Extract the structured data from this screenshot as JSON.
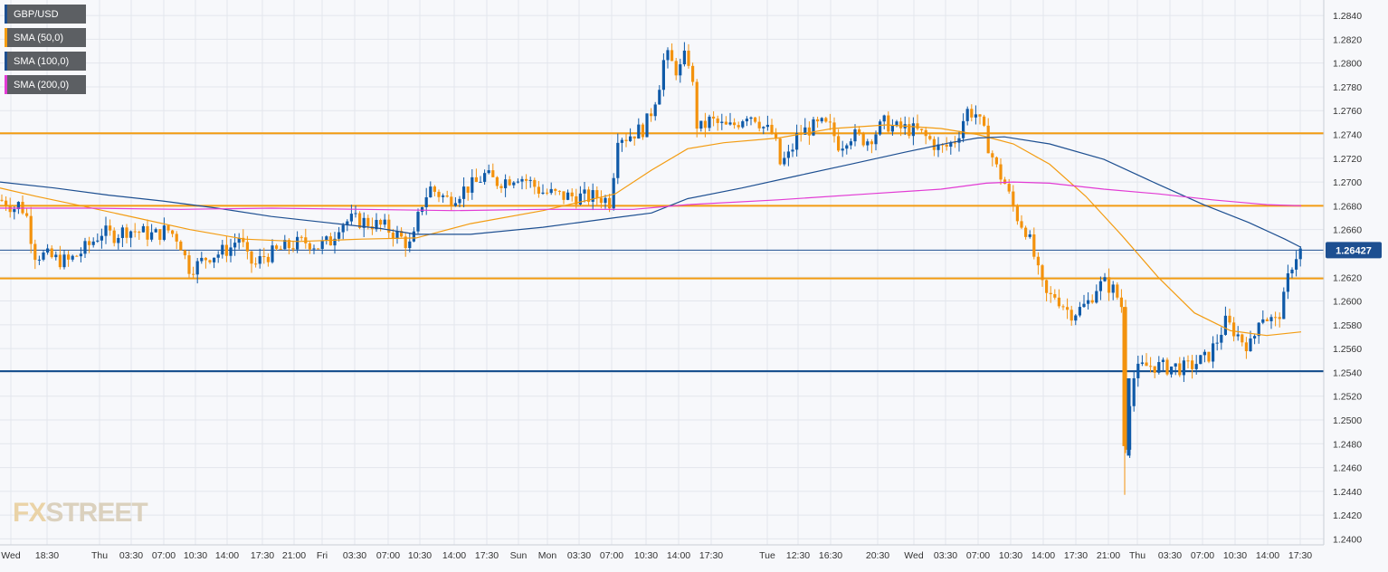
{
  "colors": {
    "bull": "#0f5aa8",
    "bear": "#f3920d",
    "sma50": "#f39c12",
    "sma100": "#1d4f91",
    "sma200": "#e23bd4",
    "level_orange": "#f39c12",
    "level_blue": "#0f4a8a",
    "grid": "#e3e6ec",
    "axis_text": "#333333",
    "price_badge": "#1d4f91"
  },
  "legend": [
    {
      "label": "GBP/USD",
      "color": "#1d4f91"
    },
    {
      "label": "SMA (50,0)",
      "color": "#f39c12"
    },
    {
      "label": "SMA (100,0)",
      "color": "#1d4f91"
    },
    {
      "label": "SMA (200,0)",
      "color": "#e23bd4"
    }
  ],
  "watermark": {
    "part1": "FX",
    "part2": "STREET"
  },
  "chart_data": {
    "type": "line",
    "title": "",
    "instrument": "GBP/USD",
    "ylim": [
      1.2395,
      1.2853
    ],
    "y_ticks": [
      "1.2400",
      "1.2420",
      "1.2440",
      "1.2460",
      "1.2480",
      "1.2500",
      "1.2520",
      "1.2540",
      "1.2560",
      "1.2580",
      "1.2600",
      "1.2620",
      "1.2640",
      "1.2660",
      "1.2680",
      "1.2700",
      "1.2720",
      "1.2740",
      "1.2760",
      "1.2780",
      "1.2800",
      "1.2820",
      "1.2840"
    ],
    "x_ticks": [
      "Wed",
      "18:30",
      "Thu",
      "03:30",
      "07:00",
      "10:30",
      "14:00",
      "17:30",
      "21:00",
      "Fri",
      "03:30",
      "07:00",
      "10:30",
      "14:00",
      "17:30",
      "Sun",
      "Mon",
      "03:30",
      "07:00",
      "10:30",
      "14:00",
      "17:30",
      "Tue",
      "12:30",
      "16:30",
      "20:30",
      "Wed",
      "03:30",
      "07:00",
      "10:30",
      "14:00",
      "17:30",
      "21:00",
      "Thu",
      "03:30",
      "07:00",
      "10:30",
      "14:00",
      "17:30"
    ],
    "current_price": {
      "value": 1.26427,
      "label": "1.26427"
    },
    "horizontal_levels": [
      {
        "value": 1.2741,
        "color": "#f39c12"
      },
      {
        "value": 1.268,
        "color": "#f39c12"
      },
      {
        "value": 1.2619,
        "color": "#f39c12"
      },
      {
        "value": 1.2541,
        "color": "#0f4a8a"
      }
    ],
    "price_path": [
      [
        0,
        1.2685
      ],
      [
        8,
        1.2683
      ],
      [
        15,
        1.2678
      ],
      [
        22,
        1.2682
      ],
      [
        30,
        1.267
      ],
      [
        38,
        1.264
      ],
      [
        50,
        1.2638
      ],
      [
        62,
        1.2635
      ],
      [
        75,
        1.2633
      ],
      [
        88,
        1.264
      ],
      [
        100,
        1.2648
      ],
      [
        112,
        1.2658
      ],
      [
        125,
        1.2655
      ],
      [
        140,
        1.266
      ],
      [
        155,
        1.2658
      ],
      [
        170,
        1.2655
      ],
      [
        185,
        1.266
      ],
      [
        198,
        1.2652
      ],
      [
        208,
        1.2628
      ],
      [
        218,
        1.263
      ],
      [
        230,
        1.2638
      ],
      [
        242,
        1.264
      ],
      [
        255,
        1.2645
      ],
      [
        265,
        1.2655
      ],
      [
        273,
        1.2635
      ],
      [
        282,
        1.263
      ],
      [
        292,
        1.2638
      ],
      [
        302,
        1.264
      ],
      [
        315,
        1.2645
      ],
      [
        328,
        1.2648
      ],
      [
        340,
        1.265
      ],
      [
        352,
        1.2646
      ],
      [
        365,
        1.265
      ],
      [
        375,
        1.2665
      ],
      [
        388,
        1.2668
      ],
      [
        400,
        1.2667
      ],
      [
        412,
        1.2665
      ],
      [
        425,
        1.2662
      ],
      [
        440,
        1.2655
      ],
      [
        455,
        1.2645
      ],
      [
        465,
        1.268
      ],
      [
        475,
        1.2695
      ],
      [
        485,
        1.269
      ],
      [
        495,
        1.2685
      ],
      [
        505,
        1.269
      ],
      [
        515,
        1.2695
      ],
      [
        525,
        1.2698
      ],
      [
        535,
        1.2706
      ],
      [
        548,
        1.27
      ],
      [
        560,
        1.2702
      ],
      [
        572,
        1.2706
      ],
      [
        585,
        1.27
      ],
      [
        598,
        1.2692
      ],
      [
        610,
        1.269
      ],
      [
        622,
        1.2688
      ],
      [
        635,
        1.2688
      ],
      [
        648,
        1.2687
      ],
      [
        662,
        1.2688
      ],
      [
        675,
        1.2683
      ],
      [
        682,
        1.274
      ],
      [
        692,
        1.2738
      ],
      [
        702,
        1.2742
      ],
      [
        712,
        1.2745
      ],
      [
        720,
        1.276
      ],
      [
        728,
        1.278
      ],
      [
        735,
        1.2808
      ],
      [
        742,
        1.28
      ],
      [
        750,
        1.2792
      ],
      [
        757,
        1.2805
      ],
      [
        764,
        1.28
      ],
      [
        768,
        1.275
      ],
      [
        775,
        1.2745
      ],
      [
        785,
        1.2752
      ],
      [
        795,
        1.2748
      ],
      [
        805,
        1.2745
      ],
      [
        815,
        1.275
      ],
      [
        825,
        1.2758
      ],
      [
        835,
        1.2755
      ],
      [
        845,
        1.2745
      ],
      [
        855,
        1.274
      ],
      [
        862,
        1.2715
      ],
      [
        872,
        1.2722
      ],
      [
        882,
        1.274
      ],
      [
        895,
        1.2745
      ],
      [
        908,
        1.2748
      ],
      [
        918,
        1.2745
      ],
      [
        928,
        1.273
      ],
      [
        938,
        1.274
      ],
      [
        948,
        1.2738
      ],
      [
        958,
        1.2735
      ],
      [
        968,
        1.2742
      ],
      [
        978,
        1.275
      ],
      [
        990,
        1.2745
      ],
      [
        1002,
        1.2745
      ],
      [
        1015,
        1.2742
      ],
      [
        1028,
        1.2735
      ],
      [
        1038,
        1.2728
      ],
      [
        1048,
        1.273
      ],
      [
        1058,
        1.2738
      ],
      [
        1068,
        1.276
      ],
      [
        1078,
        1.2758
      ],
      [
        1088,
        1.274
      ],
      [
        1095,
        1.2725
      ],
      [
        1102,
        1.271
      ],
      [
        1110,
        1.27
      ],
      [
        1118,
        1.2682
      ],
      [
        1126,
        1.2668
      ],
      [
        1134,
        1.266
      ],
      [
        1142,
        1.264
      ],
      [
        1150,
        1.2615
      ],
      [
        1158,
        1.2602
      ],
      [
        1166,
        1.2605
      ],
      [
        1174,
        1.2598
      ],
      [
        1182,
        1.259
      ],
      [
        1192,
        1.2592
      ],
      [
        1202,
        1.2598
      ],
      [
        1212,
        1.2612
      ],
      [
        1222,
        1.2615
      ],
      [
        1232,
        1.2608
      ],
      [
        1240,
        1.2595
      ],
      [
        1244,
        1.248
      ],
      [
        1250,
        1.253
      ],
      [
        1256,
        1.254
      ],
      [
        1264,
        1.2545
      ],
      [
        1274,
        1.2546
      ],
      [
        1286,
        1.2544
      ],
      [
        1298,
        1.2545
      ],
      [
        1310,
        1.2543
      ],
      [
        1322,
        1.2548
      ],
      [
        1334,
        1.2552
      ],
      [
        1344,
        1.2565
      ],
      [
        1354,
        1.2582
      ],
      [
        1364,
        1.2575
      ],
      [
        1374,
        1.2566
      ],
      [
        1384,
        1.2562
      ],
      [
        1392,
        1.259
      ],
      [
        1400,
        1.2586
      ],
      [
        1410,
        1.2582
      ],
      [
        1418,
        1.2598
      ],
      [
        1426,
        1.2628
      ],
      [
        1432,
        1.2638
      ],
      [
        1438,
        1.2643
      ]
    ],
    "series": [
      {
        "name": "SMA (50,0)",
        "color": "#f39c12",
        "points": [
          [
            0,
            1.2695
          ],
          [
            40,
            1.2688
          ],
          [
            90,
            1.268
          ],
          [
            150,
            1.267
          ],
          [
            210,
            1.266
          ],
          [
            270,
            1.2652
          ],
          [
            330,
            1.265
          ],
          [
            400,
            1.2652
          ],
          [
            460,
            1.2653
          ],
          [
            520,
            1.2665
          ],
          [
            600,
            1.2676
          ],
          [
            680,
            1.269
          ],
          [
            720,
            1.271
          ],
          [
            760,
            1.2728
          ],
          [
            800,
            1.2733
          ],
          [
            860,
            1.2737
          ],
          [
            920,
            1.2745
          ],
          [
            980,
            1.2748
          ],
          [
            1040,
            1.2745
          ],
          [
            1080,
            1.274
          ],
          [
            1120,
            1.2732
          ],
          [
            1160,
            1.2715
          ],
          [
            1200,
            1.2688
          ],
          [
            1240,
            1.2655
          ],
          [
            1280,
            1.262
          ],
          [
            1320,
            1.259
          ],
          [
            1360,
            1.2575
          ],
          [
            1400,
            1.2571
          ],
          [
            1438,
            1.2574
          ]
        ]
      },
      {
        "name": "SMA (100,0)",
        "color": "#1d4f91",
        "points": [
          [
            0,
            1.27
          ],
          [
            60,
            1.2695
          ],
          [
            120,
            1.2689
          ],
          [
            180,
            1.2684
          ],
          [
            240,
            1.2678
          ],
          [
            300,
            1.2671
          ],
          [
            360,
            1.2666
          ],
          [
            420,
            1.2661
          ],
          [
            460,
            1.2656
          ],
          [
            520,
            1.2656
          ],
          [
            600,
            1.2662
          ],
          [
            680,
            1.267
          ],
          [
            720,
            1.2674
          ],
          [
            760,
            1.2686
          ],
          [
            820,
            1.2695
          ],
          [
            880,
            1.2705
          ],
          [
            940,
            1.2715
          ],
          [
            1000,
            1.2725
          ],
          [
            1050,
            1.2733
          ],
          [
            1080,
            1.2737
          ],
          [
            1110,
            1.2738
          ],
          [
            1160,
            1.2732
          ],
          [
            1220,
            1.2719
          ],
          [
            1280,
            1.2698
          ],
          [
            1330,
            1.2681
          ],
          [
            1380,
            1.2666
          ],
          [
            1420,
            1.2652
          ],
          [
            1438,
            1.2645
          ]
        ]
      },
      {
        "name": "SMA (200,0)",
        "color": "#e23bd4",
        "points": [
          [
            0,
            1.2678
          ],
          [
            100,
            1.2678
          ],
          [
            200,
            1.2677
          ],
          [
            300,
            1.2678
          ],
          [
            400,
            1.2677
          ],
          [
            500,
            1.2676
          ],
          [
            600,
            1.2677
          ],
          [
            700,
            1.2677
          ],
          [
            760,
            1.2681
          ],
          [
            860,
            1.2685
          ],
          [
            960,
            1.269
          ],
          [
            1040,
            1.2694
          ],
          [
            1090,
            1.2699
          ],
          [
            1120,
            1.27
          ],
          [
            1160,
            1.2699
          ],
          [
            1220,
            1.2694
          ],
          [
            1280,
            1.269
          ],
          [
            1340,
            1.2685
          ],
          [
            1400,
            1.2681
          ],
          [
            1438,
            1.268
          ]
        ]
      }
    ]
  }
}
